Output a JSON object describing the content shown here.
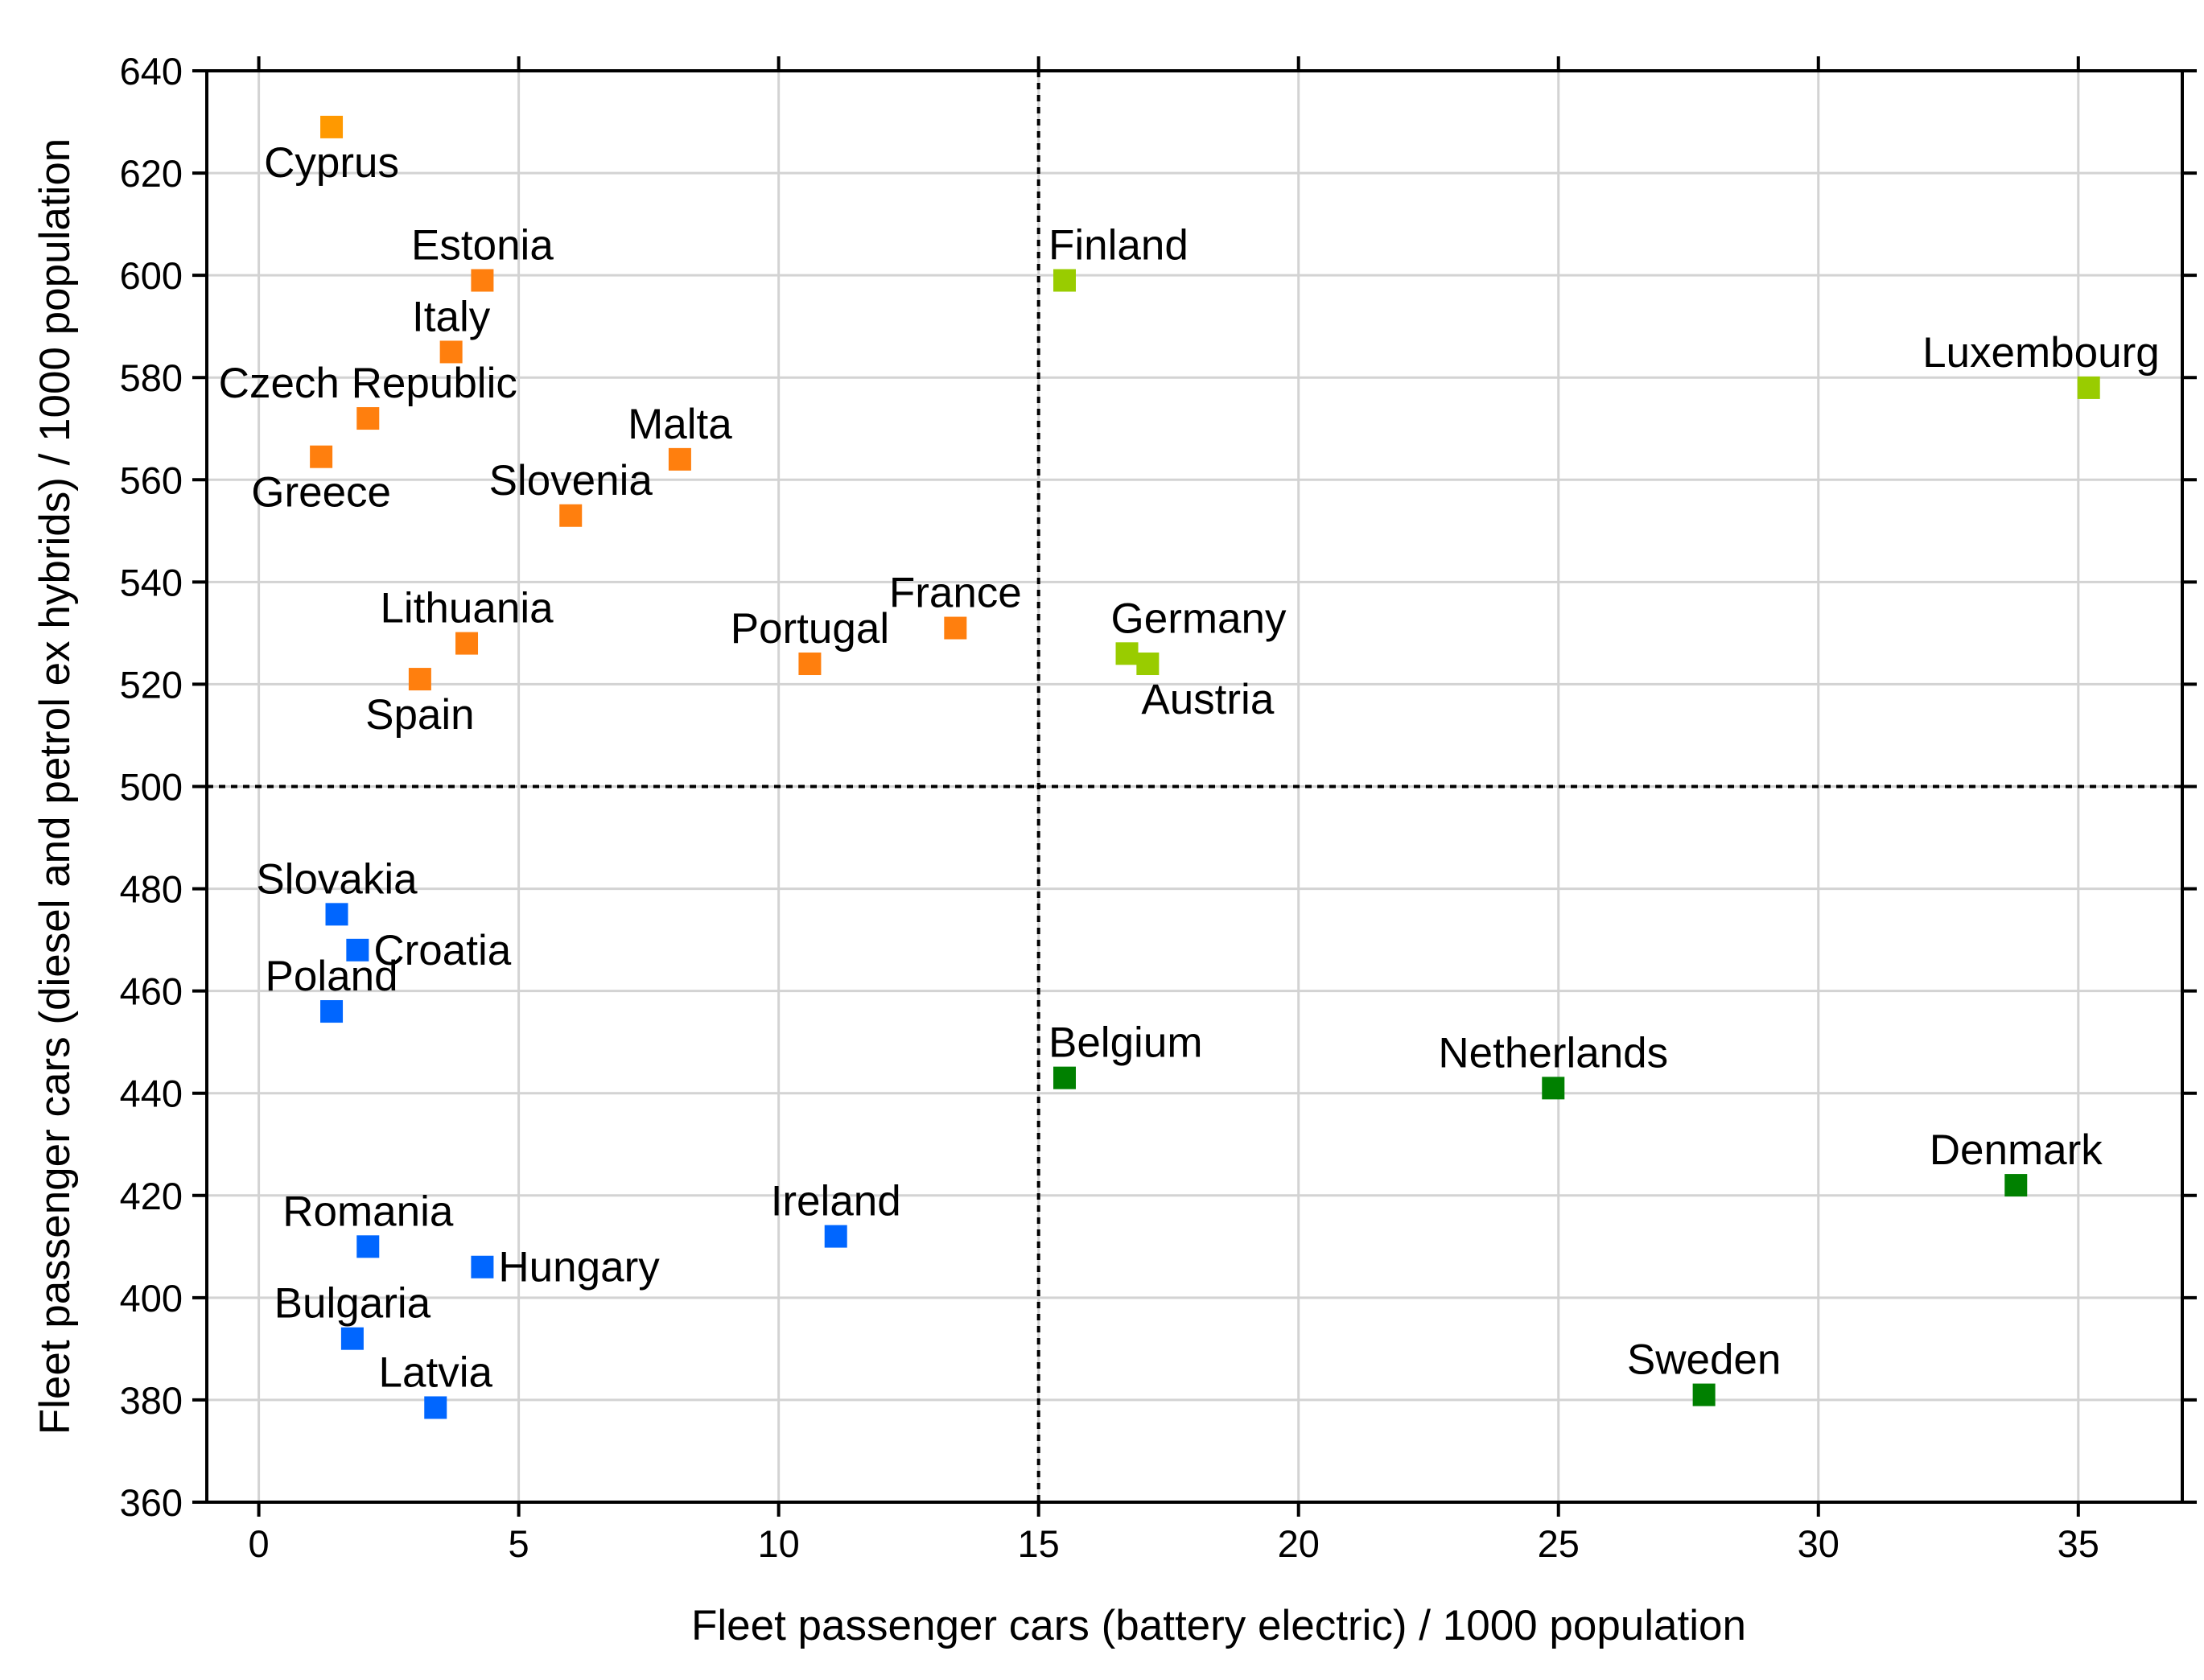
{
  "chart_data": {
    "type": "scatter",
    "xlabel": "Fleet passenger cars (battery electric) / 1000 population",
    "ylabel": "Fleet passenger cars (diesel and petrol ex hybrids) / 1000 population",
    "xlim": [
      -1,
      37
    ],
    "ylim": [
      360,
      640
    ],
    "xticks": [
      0,
      5,
      10,
      15,
      20,
      25,
      30,
      35
    ],
    "yticks": [
      360,
      380,
      400,
      420,
      440,
      460,
      480,
      500,
      520,
      540,
      560,
      580,
      600,
      620,
      640
    ],
    "grid": true,
    "reference_lines": {
      "x": 15,
      "y": 500,
      "style": "dotted"
    },
    "colors": {
      "cyprus": "#FF9900",
      "orange": "#FF7F0E",
      "lightgreen": "#99CC00",
      "blue": "#0066FF",
      "green": "#008000"
    },
    "points": [
      {
        "label": "Cyprus",
        "x": 1.4,
        "y": 629,
        "color": "cyprus",
        "lpos": "below"
      },
      {
        "label": "Estonia",
        "x": 4.3,
        "y": 599,
        "color": "orange",
        "lpos": "above"
      },
      {
        "label": "Italy",
        "x": 3.7,
        "y": 585,
        "color": "orange",
        "lpos": "above"
      },
      {
        "label": "Czech Republic",
        "x": 2.1,
        "y": 572,
        "color": "orange",
        "lpos": "above"
      },
      {
        "label": "Greece",
        "x": 1.2,
        "y": 564.5,
        "color": "orange",
        "lpos": "below"
      },
      {
        "label": "Malta",
        "x": 8.1,
        "y": 564,
        "color": "orange",
        "lpos": "above"
      },
      {
        "label": "Slovenia",
        "x": 6.0,
        "y": 553,
        "color": "orange",
        "lpos": "above"
      },
      {
        "label": "Lithuania",
        "x": 4.0,
        "y": 528,
        "color": "orange",
        "lpos": "above"
      },
      {
        "label": "Spain",
        "x": 3.1,
        "y": 521,
        "color": "orange",
        "lpos": "below"
      },
      {
        "label": "Portugal",
        "x": 10.6,
        "y": 524,
        "color": "orange",
        "lpos": "above"
      },
      {
        "label": "France",
        "x": 13.4,
        "y": 531,
        "color": "orange",
        "lpos": "above"
      },
      {
        "label": "Finland",
        "x": 15.5,
        "y": 599,
        "color": "lightgreen",
        "lpos": "above-right"
      },
      {
        "label": "Luxembourg",
        "x": 35.2,
        "y": 578,
        "color": "lightgreen",
        "lpos": "above-left"
      },
      {
        "label": "Germany",
        "x": 16.7,
        "y": 526,
        "color": "lightgreen",
        "lpos": "above-right"
      },
      {
        "label": "Austria",
        "x": 17.1,
        "y": 524,
        "color": "lightgreen",
        "lpos": "below-right"
      },
      {
        "label": "Slovakia",
        "x": 1.5,
        "y": 475,
        "color": "blue",
        "lpos": "above"
      },
      {
        "label": "Croatia",
        "x": 1.9,
        "y": 468,
        "color": "blue",
        "lpos": "right"
      },
      {
        "label": "Poland",
        "x": 1.4,
        "y": 456,
        "color": "blue",
        "lpos": "above"
      },
      {
        "label": "Romania",
        "x": 2.1,
        "y": 410,
        "color": "blue",
        "lpos": "above"
      },
      {
        "label": "Hungary",
        "x": 4.3,
        "y": 406,
        "color": "blue",
        "lpos": "right"
      },
      {
        "label": "Ireland",
        "x": 11.1,
        "y": 412,
        "color": "blue",
        "lpos": "above"
      },
      {
        "label": "Bulgaria",
        "x": 1.8,
        "y": 392,
        "color": "blue",
        "lpos": "above"
      },
      {
        "label": "Latvia",
        "x": 3.4,
        "y": 378.5,
        "color": "blue",
        "lpos": "above"
      },
      {
        "label": "Belgium",
        "x": 15.5,
        "y": 443,
        "color": "green",
        "lpos": "above-right"
      },
      {
        "label": "Netherlands",
        "x": 24.9,
        "y": 441,
        "color": "green",
        "lpos": "above"
      },
      {
        "label": "Denmark",
        "x": 33.8,
        "y": 422,
        "color": "green",
        "lpos": "above"
      },
      {
        "label": "Sweden",
        "x": 27.8,
        "y": 381,
        "color": "green",
        "lpos": "above"
      }
    ]
  }
}
